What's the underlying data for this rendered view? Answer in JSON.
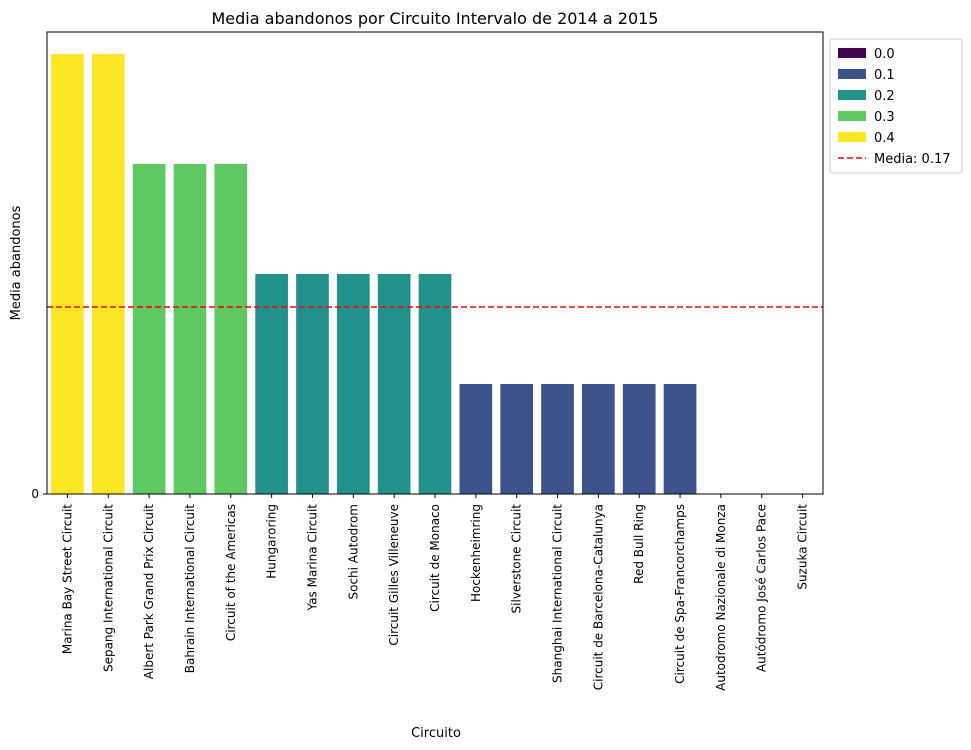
{
  "chart_data": {
    "type": "bar",
    "title": "Media abandonos por Circuito Intervalo de 2014 a 2015",
    "xlabel": "Circuito",
    "ylabel": "Media abandonos",
    "categories": [
      "Marina Bay Street Circuit",
      "Sepang International Circuit",
      "Albert Park Grand Prix Circuit",
      "Bahrain International Circuit",
      "Circuit of the Americas",
      "Hungaroring",
      "Yas Marina Circuit",
      "Sochi Autodrom",
      "Circuit Gilles Villeneuve",
      "Circuit de Monaco",
      "Hockenheimring",
      "Silverstone Circuit",
      "Shanghai International Circuit",
      "Circuit de Barcelona-Catalunya",
      "Red Bull Ring",
      "Circuit de Spa-Francorchamps",
      "Autodromo Nazionale di Monza",
      "Autódromo José Carlos Pace",
      "Suzuka Circuit"
    ],
    "values": [
      0.4,
      0.4,
      0.3,
      0.3,
      0.3,
      0.2,
      0.2,
      0.2,
      0.2,
      0.2,
      0.1,
      0.1,
      0.1,
      0.1,
      0.1,
      0.1,
      0.0,
      0.0,
      0.0
    ],
    "yticks": [
      {
        "value": 0,
        "label": "0"
      }
    ],
    "ylim": [
      0,
      0.42
    ],
    "mean": {
      "value": 0.17,
      "label": "Media: 0.17",
      "color": "#ff0000",
      "style": "dashed"
    },
    "hue_levels": [
      {
        "label": "0.0",
        "color": "#440154"
      },
      {
        "label": "0.1",
        "color": "#3b528b"
      },
      {
        "label": "0.2",
        "color": "#21918c"
      },
      {
        "label": "0.3",
        "color": "#5ec962"
      },
      {
        "label": "0.4",
        "color": "#fde725"
      }
    ],
    "legend_position": "outside top-right",
    "grid": false
  }
}
